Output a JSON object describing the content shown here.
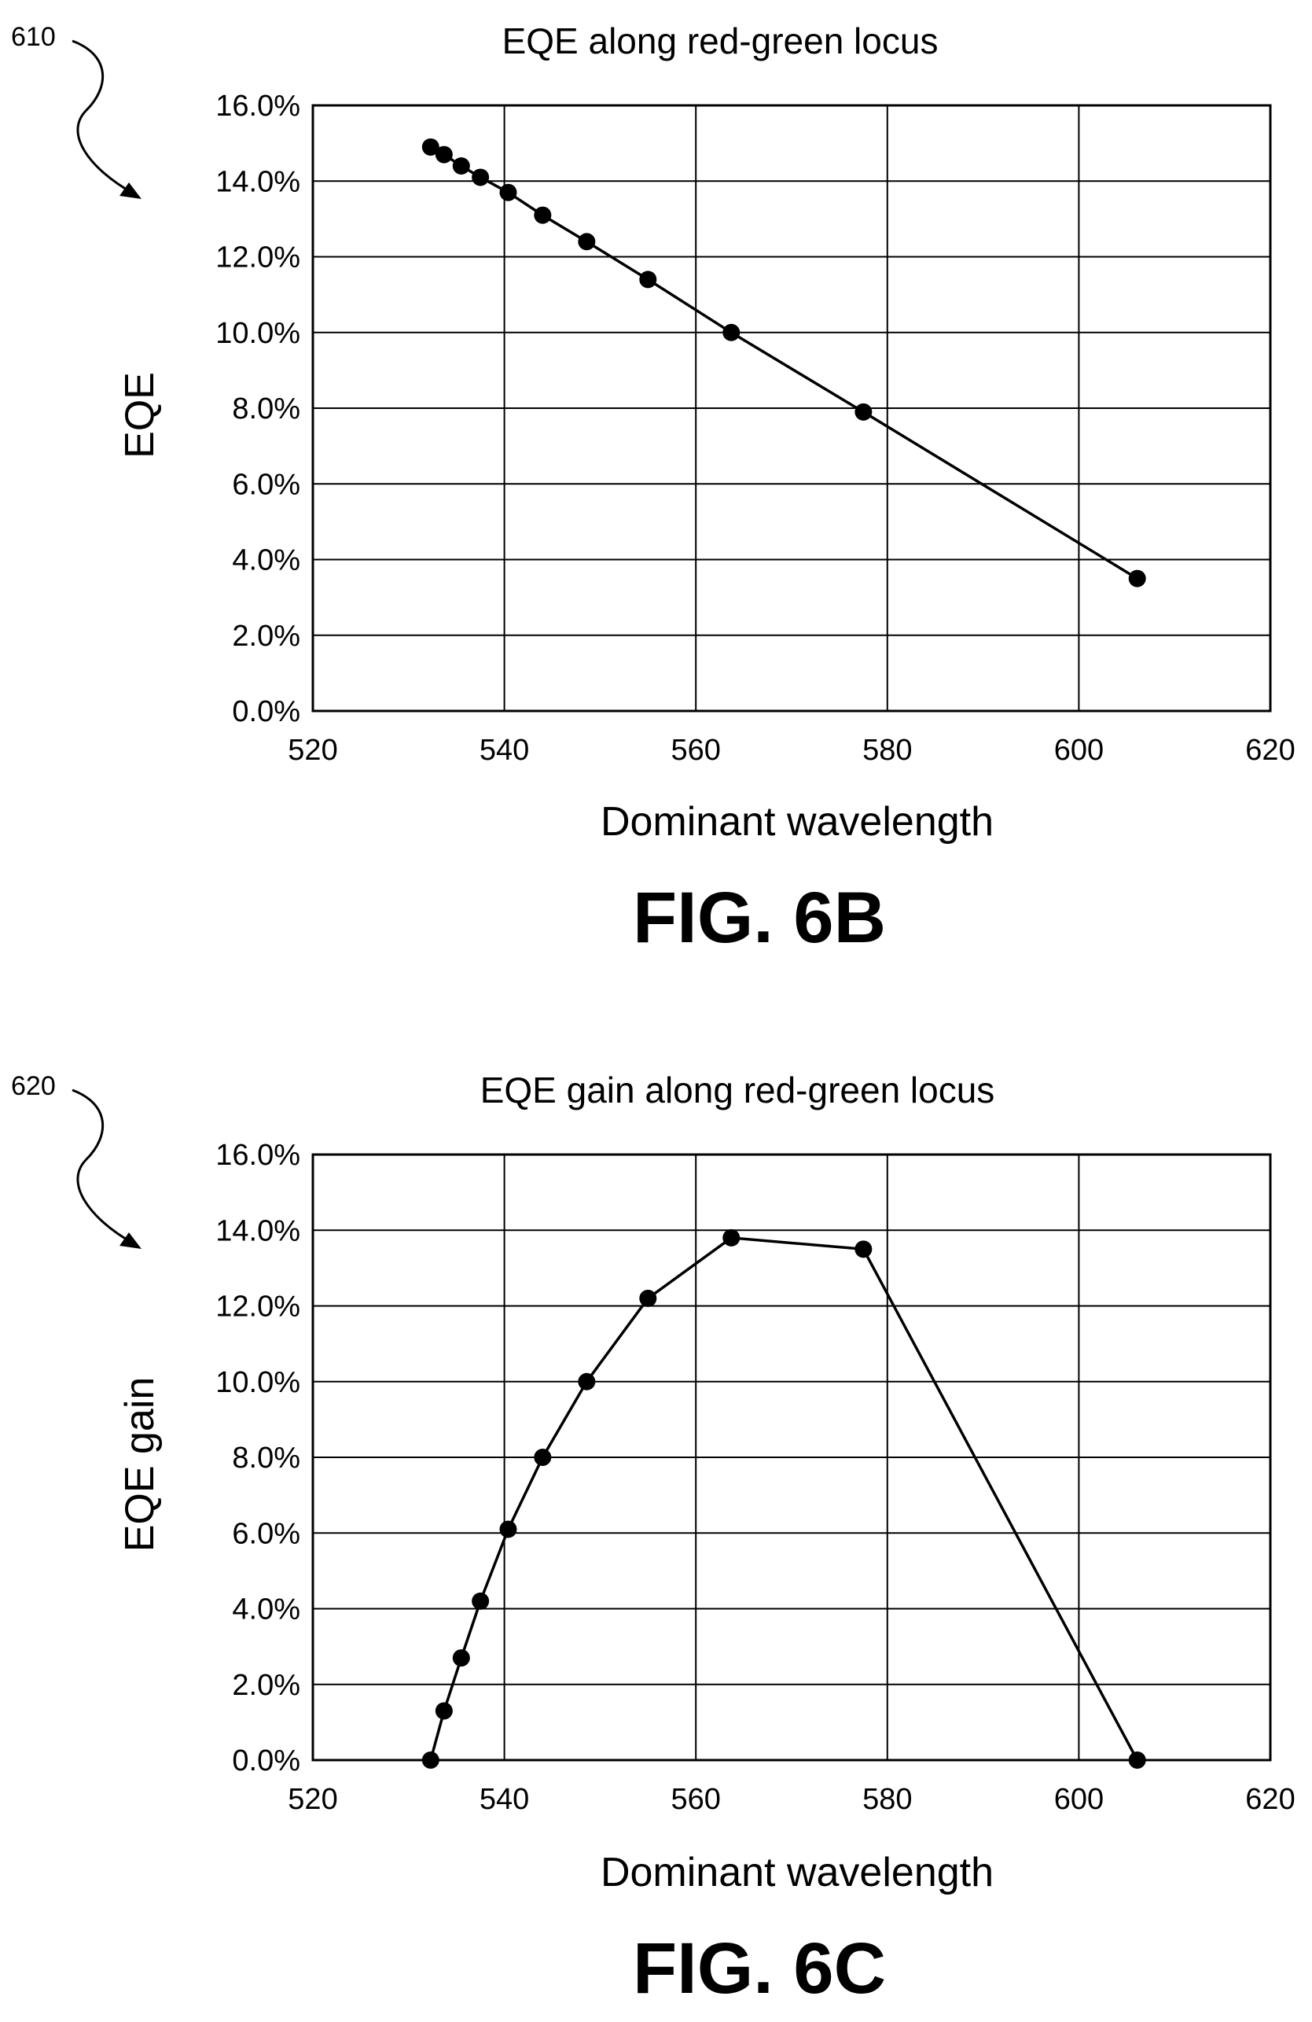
{
  "colors": {
    "ink": "#000000",
    "background": "#ffffff"
  },
  "chart_data": [
    {
      "type": "line",
      "reference_numeral": "610",
      "figure_label": "FIG. 6B",
      "title": "EQE along red-green locus",
      "xlabel": "Dominant wavelength",
      "ylabel": "EQE",
      "xlim": [
        520,
        620
      ],
      "ylim": [
        0,
        16
      ],
      "x_ticks": [
        "520",
        "540",
        "560",
        "580",
        "600",
        "620"
      ],
      "y_ticks": [
        "0.0%",
        "2.0%",
        "4.0%",
        "6.0%",
        "8.0%",
        "10.0%",
        "12.0%",
        "14.0%",
        "16.0%"
      ],
      "grid": true,
      "series": [
        {
          "x": [
            532.3,
            533.7,
            535.5,
            537.5,
            540.4,
            544.0,
            548.6,
            555.0,
            563.7,
            577.5,
            606.1
          ],
          "y": [
            14.9,
            14.7,
            14.4,
            14.1,
            13.7,
            13.1,
            12.4,
            11.4,
            10.0,
            7.9,
            3.5
          ]
        }
      ]
    },
    {
      "type": "line",
      "reference_numeral": "620",
      "figure_label": "FIG. 6C",
      "title": "EQE gain along red-green locus",
      "xlabel": "Dominant wavelength",
      "ylabel": "EQE gain",
      "xlim": [
        520,
        620
      ],
      "ylim": [
        0,
        16
      ],
      "x_ticks": [
        "520",
        "540",
        "560",
        "580",
        "600",
        "620"
      ],
      "y_ticks": [
        "0.0%",
        "2.0%",
        "4.0%",
        "6.0%",
        "8.0%",
        "10.0%",
        "12.0%",
        "14.0%",
        "16.0%"
      ],
      "grid": true,
      "series": [
        {
          "x": [
            532.3,
            533.7,
            535.5,
            537.5,
            540.4,
            544.0,
            548.6,
            555.0,
            563.7,
            577.5,
            606.1
          ],
          "y": [
            0.0,
            1.3,
            2.7,
            4.2,
            6.1,
            8.0,
            10.0,
            12.2,
            13.8,
            13.5,
            0.0
          ]
        }
      ]
    }
  ]
}
